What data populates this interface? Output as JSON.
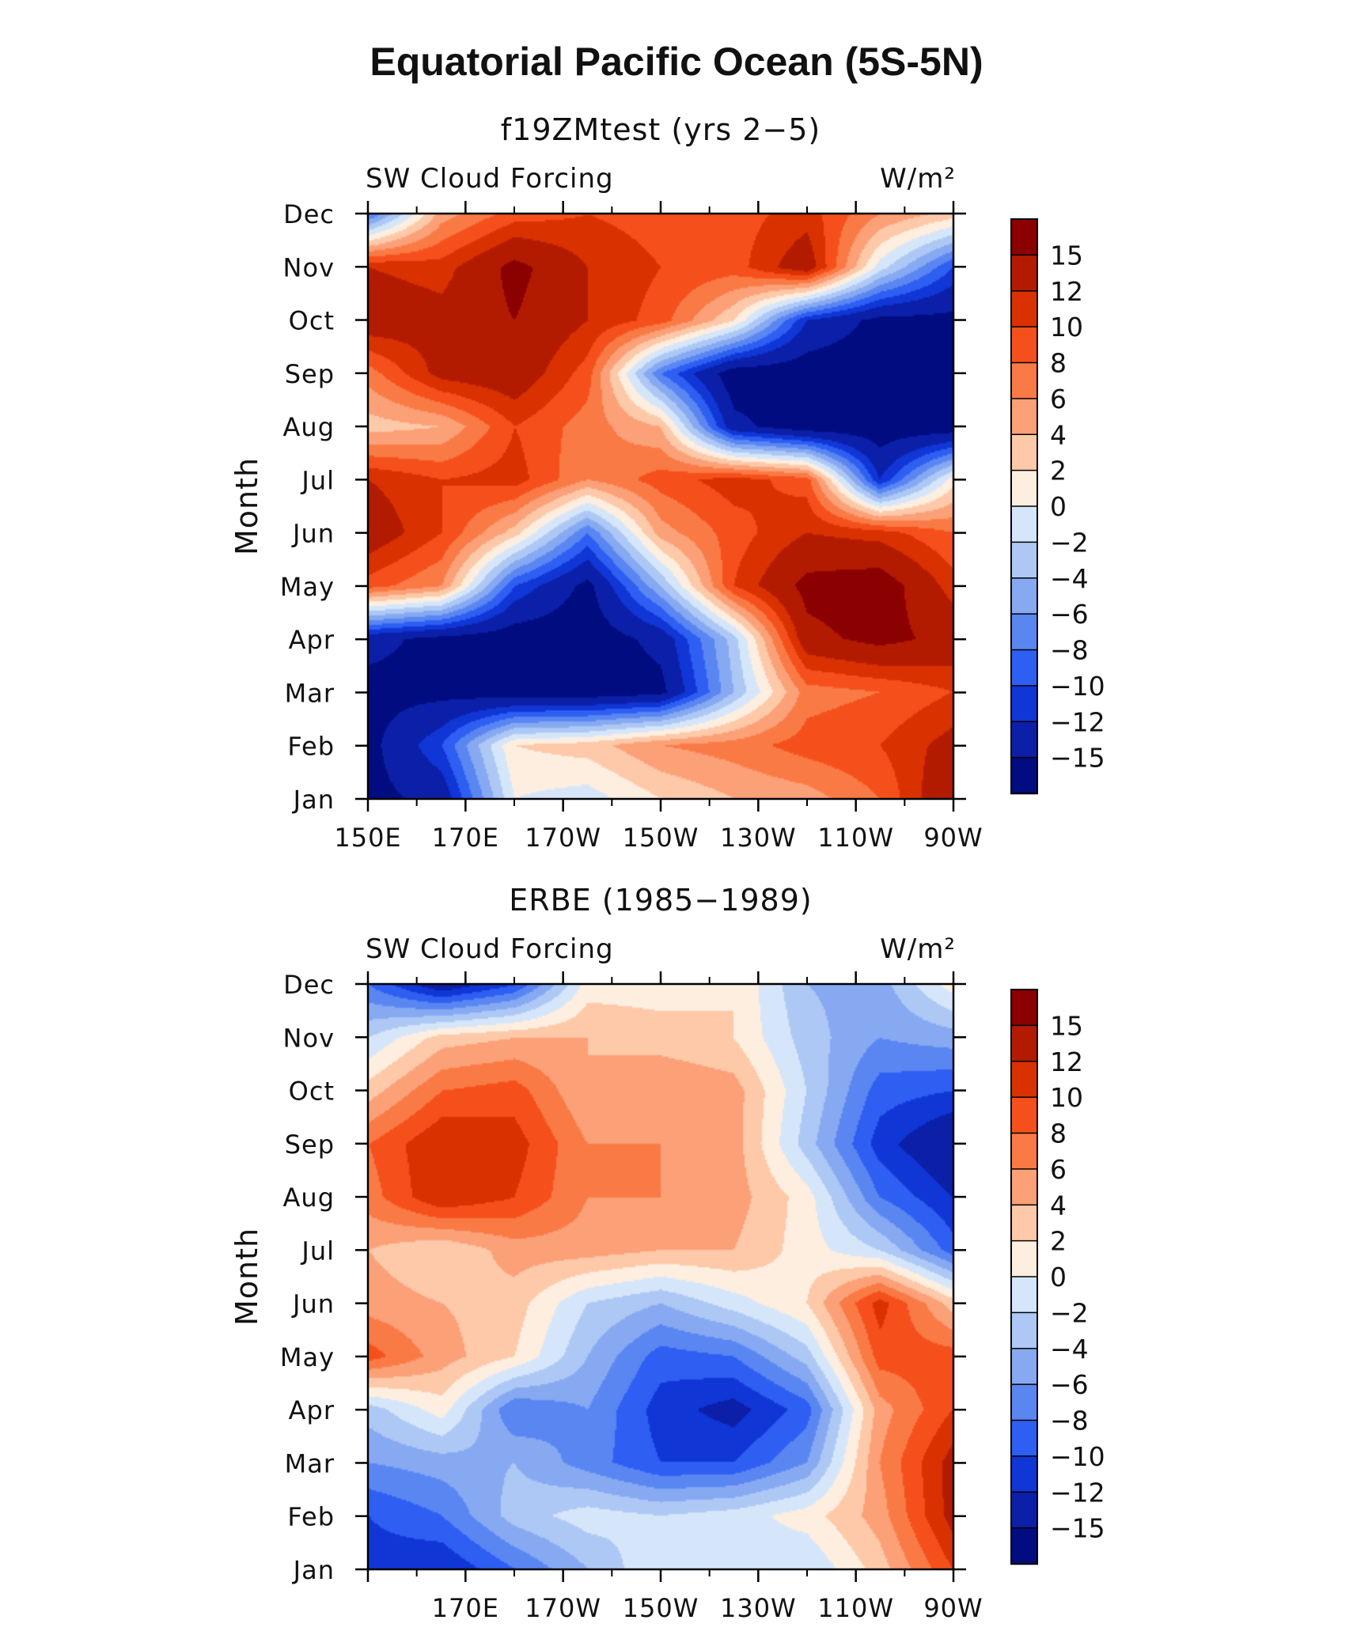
{
  "title": "Equatorial Pacific Ocean (5S-5N)",
  "colorbar": {
    "labels": [
      "15",
      "12",
      "10",
      "8",
      "6",
      "4",
      "2",
      "0",
      "−2",
      "−4",
      "−6",
      "−8",
      "−10",
      "−12",
      "−15"
    ],
    "colors": [
      "#8b0000",
      "#b31b00",
      "#d93200",
      "#f5501c",
      "#fa7a45",
      "#fca078",
      "#fdc9a8",
      "#fdeee0",
      "#d6e6fa",
      "#adc8f5",
      "#86a9f2",
      "#5a86f2",
      "#2e5ef2",
      "#1036d6",
      "#0b1fa8",
      "#000c80"
    ]
  },
  "chart_data": [
    {
      "type": "heatmap",
      "title": "f19ZMtest (yrs 2−5)",
      "left_label": "SW Cloud Forcing",
      "right_label": "W/m²",
      "ylabel": "Month",
      "xlabel": "",
      "x_ticks": [
        "150E",
        "170E",
        "170W",
        "150W",
        "130W",
        "110W",
        "90W"
      ],
      "y_ticks": [
        "Jan",
        "Feb",
        "Mar",
        "Apr",
        "May",
        "Jun",
        "Jul",
        "Aug",
        "Sep",
        "Oct",
        "Nov",
        "Dec"
      ],
      "x_range": [
        "150E",
        "90W"
      ],
      "y_range": [
        "Jan",
        "Dec"
      ],
      "colorbar_range": [
        -15,
        15
      ],
      "longitudes": [
        "150E",
        "165E",
        "180",
        "165W",
        "150W",
        "135W",
        "120W",
        "105W",
        "90W"
      ],
      "months": [
        "Jan",
        "Feb",
        "Mar",
        "Apr",
        "May",
        "Jun",
        "Jul",
        "Aug",
        "Sep",
        "Oct",
        "Nov",
        "Dec"
      ],
      "values": [
        [
          -16,
          -14,
          0,
          -1,
          2,
          4,
          5,
          8,
          15
        ],
        [
          -16,
          -10,
          2,
          3,
          6,
          7,
          9,
          10,
          13
        ],
        [
          -16,
          -16,
          -17,
          -17,
          -16,
          -4,
          7,
          8,
          10
        ],
        [
          -14,
          -16,
          -17,
          -17,
          -14,
          -3,
          14,
          16,
          14
        ],
        [
          9,
          6,
          -10,
          -16,
          -4,
          10,
          16,
          17,
          11
        ],
        [
          14,
          10,
          3,
          -8,
          5,
          9,
          12,
          11,
          8
        ],
        [
          12,
          10,
          11,
          6,
          9,
          11,
          9,
          -12,
          1
        ],
        [
          3,
          4,
          10,
          7,
          4,
          -14,
          -17,
          -17,
          -17
        ],
        [
          7,
          13,
          14,
          9,
          -8,
          -17,
          -17,
          -17,
          -17
        ],
        [
          14,
          13,
          15,
          12,
          9,
          2,
          -12,
          -16,
          -16
        ],
        [
          12,
          11,
          16,
          12,
          10,
          9,
          14,
          -1,
          -10
        ],
        [
          -8,
          5,
          9,
          10,
          9,
          9,
          11,
          6,
          3
        ]
      ]
    },
    {
      "type": "heatmap",
      "title": "ERBE (1985−1989)",
      "left_label": "SW Cloud Forcing",
      "right_label": "W/m²",
      "ylabel": "Month",
      "xlabel": "",
      "x_ticks": [
        "170E",
        "170W",
        "150W",
        "130W",
        "110W",
        "90W"
      ],
      "y_ticks": [
        "Jan",
        "Feb",
        "Mar",
        "Apr",
        "May",
        "Jun",
        "Jul",
        "Aug",
        "Sep",
        "Oct",
        "Nov",
        "Dec"
      ],
      "x_range": [
        "150E",
        "90W"
      ],
      "y_range": [
        "Jan",
        "Dec"
      ],
      "colorbar_range": [
        -15,
        15
      ],
      "longitudes": [
        "150E",
        "165E",
        "180",
        "165W",
        "150W",
        "135W",
        "120W",
        "105W",
        "90W"
      ],
      "months": [
        "Jan",
        "Feb",
        "Mar",
        "Apr",
        "May",
        "Jun",
        "Jul",
        "Aug",
        "Sep",
        "Oct",
        "Nov",
        "Dec"
      ],
      "values": [
        [
          -11,
          -12,
          -8,
          -4,
          0,
          -1,
          -2,
          3,
          10
        ],
        [
          -10,
          -8,
          -3,
          -1,
          -2,
          -1,
          1,
          5,
          13
        ],
        [
          -6,
          -5,
          -4,
          -7,
          -10,
          -10,
          -6,
          6,
          13
        ],
        [
          -3,
          1,
          -8,
          -6,
          -11,
          -13,
          -9,
          5,
          10
        ],
        [
          9,
          5,
          2,
          -4,
          -9,
          -8,
          -3,
          9,
          9
        ],
        [
          5,
          4,
          3,
          -2,
          -4,
          -1,
          2,
          11,
          3
        ],
        [
          4,
          2,
          5,
          5,
          4,
          4,
          1,
          -2,
          -9
        ],
        [
          7,
          12,
          10,
          6,
          6,
          5,
          1,
          -8,
          -12
        ],
        [
          8,
          12,
          11,
          6,
          6,
          5,
          -3,
          -11,
          -15
        ],
        [
          3,
          8,
          9,
          4,
          6,
          5,
          -2,
          -9,
          -10
        ],
        [
          -2,
          3,
          4,
          4,
          3,
          2,
          -3,
          -6,
          -5
        ],
        [
          -8,
          -14,
          -10,
          1,
          1,
          2,
          -4,
          -5,
          1
        ]
      ]
    }
  ]
}
